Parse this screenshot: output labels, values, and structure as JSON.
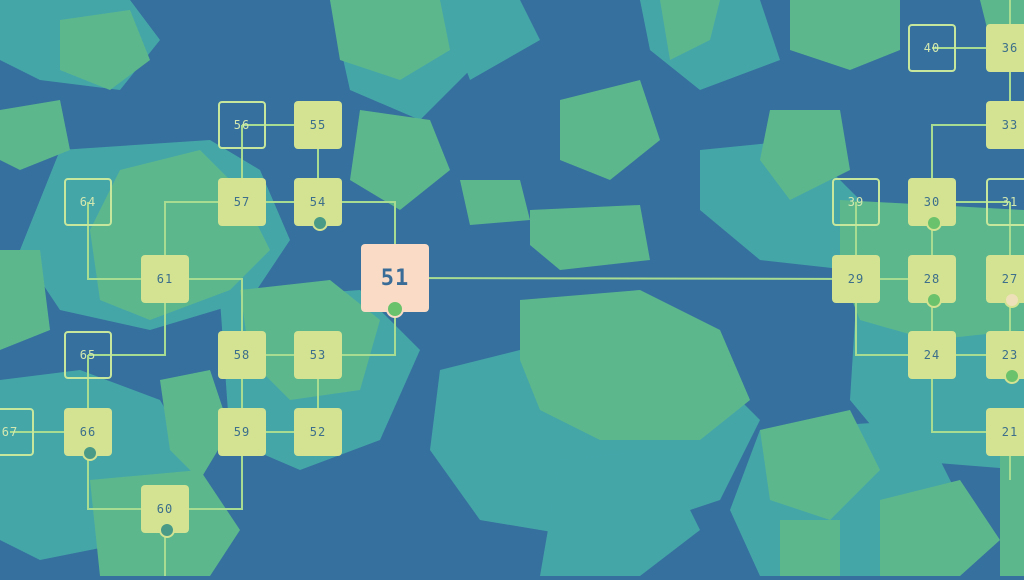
{
  "colors": {
    "ocean": "#36709e",
    "shallow": "#45a6a8",
    "land": "#5cb88c",
    "path": "#a8dc90",
    "node_done": "#d3e391",
    "node_current": "#fadcc6",
    "node_locked_border": "#c6e79c",
    "marker": "#6bc26c"
  },
  "levels": [
    {
      "label": "56",
      "state": "locked"
    },
    {
      "label": "55",
      "state": "done"
    },
    {
      "label": "57",
      "state": "done"
    },
    {
      "label": "54",
      "state": "done",
      "marker": "gem"
    },
    {
      "label": "64",
      "state": "locked"
    },
    {
      "label": "61",
      "state": "done"
    },
    {
      "label": "51",
      "state": "current",
      "marker": "dot"
    },
    {
      "label": "65",
      "state": "locked"
    },
    {
      "label": "58",
      "state": "done"
    },
    {
      "label": "53",
      "state": "done"
    },
    {
      "label": "67",
      "state": "locked"
    },
    {
      "label": "66",
      "state": "done",
      "marker": "gem"
    },
    {
      "label": "59",
      "state": "done"
    },
    {
      "label": "52",
      "state": "done"
    },
    {
      "label": "60",
      "state": "done",
      "marker": "gem"
    },
    {
      "label": "40",
      "state": "locked"
    },
    {
      "label": "36",
      "state": "done"
    },
    {
      "label": "33",
      "state": "done"
    },
    {
      "label": "39",
      "state": "locked"
    },
    {
      "label": "30",
      "state": "done",
      "marker": "dot"
    },
    {
      "label": "31",
      "state": "locked"
    },
    {
      "label": "29",
      "state": "done"
    },
    {
      "label": "28",
      "state": "done",
      "marker": "dot"
    },
    {
      "label": "27",
      "state": "done",
      "marker": "pale"
    },
    {
      "label": "24",
      "state": "done"
    },
    {
      "label": "23",
      "state": "done",
      "marker": "dot"
    },
    {
      "label": "21",
      "state": "done"
    }
  ]
}
